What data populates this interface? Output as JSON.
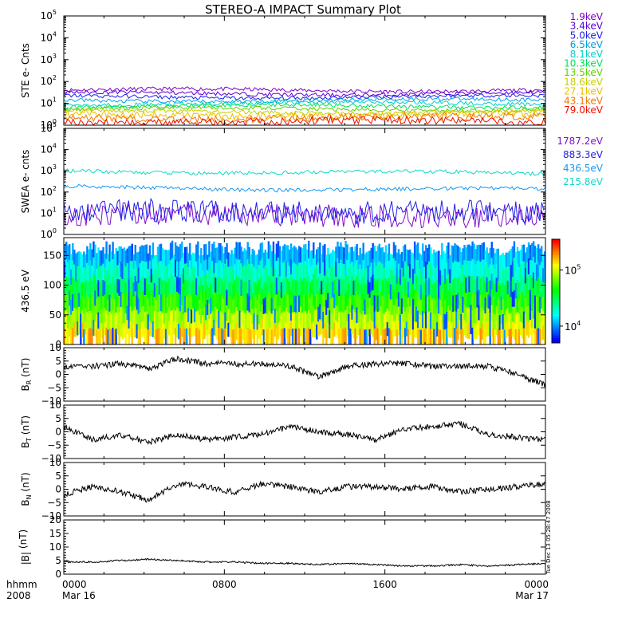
{
  "title": "STEREO-A IMPACT Summary Plot",
  "stamp": "Tue Dec 13 05:28:47 2008",
  "colors": {
    "axis": "#000000",
    "ste": [
      "#7e00c8",
      "#5a00d8",
      "#2020e8",
      "#00a0e0",
      "#00d0c8",
      "#00e060",
      "#60d000",
      "#c8d000",
      "#f0c000",
      "#f07800",
      "#f01000"
    ],
    "swea": [
      "#8010d0",
      "#2020e8",
      "#1898f0",
      "#10d8c8"
    ]
  },
  "chart_data": [
    {
      "type": "line",
      "ylabel": "STE e- Cnts",
      "yscale": "log",
      "ylim": [
        1,
        100000
      ],
      "y_ticks": [
        1,
        10,
        100,
        1000,
        10000,
        100000
      ],
      "y_tick_labels": [
        {
          "base": "10",
          "exp": "0"
        },
        {
          "base": "10",
          "exp": "1"
        },
        {
          "base": "10",
          "exp": "2"
        },
        {
          "base": "10",
          "exp": "3"
        },
        {
          "base": "10",
          "exp": "4"
        },
        {
          "base": "10",
          "exp": "5"
        }
      ],
      "legend": [
        "1.9keV",
        "3.4keV",
        "5.0keV",
        "6.5keV",
        "8.1keV",
        "10.3keV",
        "13.5keV",
        "18.6keV",
        "27.1keV",
        "43.1keV",
        "79.0keV"
      ],
      "series_levels": [
        40,
        28,
        20,
        14,
        10,
        7.5,
        5.5,
        4,
        3,
        2.2,
        1.5
      ]
    },
    {
      "type": "line",
      "ylabel": "SWEA e- cnts",
      "yscale": "log",
      "ylim": [
        1,
        100000
      ],
      "y_ticks": [
        1,
        10,
        100,
        1000,
        10000,
        100000
      ],
      "y_tick_labels": [
        {
          "base": "10",
          "exp": "0"
        },
        {
          "base": "10",
          "exp": "1"
        },
        {
          "base": "10",
          "exp": "2"
        },
        {
          "base": "10",
          "exp": "3"
        },
        {
          "base": "10",
          "exp": "4"
        },
        {
          "base": "10",
          "exp": "5"
        }
      ],
      "legend": [
        "1787.2eV",
        "883.3eV",
        "436.5eV",
        "215.8eV"
      ],
      "series_levels": [
        8,
        12,
        170,
        1000
      ]
    },
    {
      "type": "heatmap",
      "ylabel": "436.5 eV",
      "ylim": [
        0,
        180
      ],
      "y_ticks": [
        0,
        50,
        100,
        150
      ],
      "y_tick_labels": [
        "0",
        "50",
        "100",
        "150"
      ],
      "colorbar_ticks": [
        10000,
        100000
      ],
      "colorbar_tick_labels": [
        {
          "base": "10",
          "exp": "4"
        },
        {
          "base": "10",
          "exp": "5"
        }
      ]
    },
    {
      "type": "line",
      "ylabel": {
        "main": "B",
        "sub": "R",
        "unit": " (nT)"
      },
      "ylim": [
        -10,
        10
      ],
      "y_ticks": [
        -10,
        -5,
        0,
        5,
        10
      ],
      "y_tick_labels": [
        "−10",
        "−5",
        "0",
        "5",
        "10"
      ],
      "y_values_sampled": [
        3,
        3,
        4,
        2,
        6,
        4,
        4,
        4,
        3,
        -1,
        3,
        4,
        4,
        3,
        3,
        3,
        0,
        -4
      ]
    },
    {
      "type": "line",
      "ylabel": {
        "main": "B",
        "sub": "T",
        "unit": " (nT)"
      },
      "ylim": [
        -10,
        10
      ],
      "y_ticks": [
        -10,
        -5,
        0,
        5,
        10
      ],
      "y_tick_labels": [
        "−10",
        "−5",
        "0",
        "5",
        "10"
      ],
      "y_values_sampled": [
        2,
        -3,
        -1,
        -4,
        -1,
        -3,
        -2,
        -1,
        2,
        0,
        -1,
        -3,
        1,
        2,
        3,
        -1,
        -2,
        -3
      ]
    },
    {
      "type": "line",
      "ylabel": {
        "main": "B",
        "sub": "N",
        "unit": " (nT)"
      },
      "ylim": [
        -10,
        10
      ],
      "y_ticks": [
        -10,
        -5,
        0,
        5,
        10
      ],
      "y_tick_labels": [
        "−10",
        "−5",
        "0",
        "5",
        "10"
      ],
      "y_values_sampled": [
        -2,
        1,
        -1,
        -4,
        2,
        1,
        -1,
        2,
        1,
        -1,
        1,
        1,
        0,
        1,
        -1,
        0,
        1,
        2
      ]
    },
    {
      "type": "line",
      "ylabel": {
        "main": "|B|",
        "sub": "",
        "unit": " (nT)"
      },
      "ylim": [
        0,
        20
      ],
      "y_ticks": [
        0,
        5,
        10,
        15,
        20
      ],
      "y_tick_labels": [
        "0",
        "5",
        "10",
        "15",
        "20"
      ],
      "y_values_sampled": [
        4.5,
        4.5,
        5,
        5.5,
        5,
        4.5,
        4.5,
        4,
        4,
        3.5,
        4,
        3.5,
        3,
        3,
        3.5,
        3,
        3.5,
        4
      ]
    }
  ],
  "time_axis": {
    "row_labels": [
      "hhmm",
      "2008"
    ],
    "ticks": [
      {
        "hour": 0,
        "top": "0000",
        "bottom": "Mar 16"
      },
      {
        "hour": 8,
        "top": "0800",
        "bottom": ""
      },
      {
        "hour": 16,
        "top": "1600",
        "bottom": ""
      },
      {
        "hour": 24,
        "top": "0000",
        "bottom": "Mar 17"
      }
    ]
  }
}
